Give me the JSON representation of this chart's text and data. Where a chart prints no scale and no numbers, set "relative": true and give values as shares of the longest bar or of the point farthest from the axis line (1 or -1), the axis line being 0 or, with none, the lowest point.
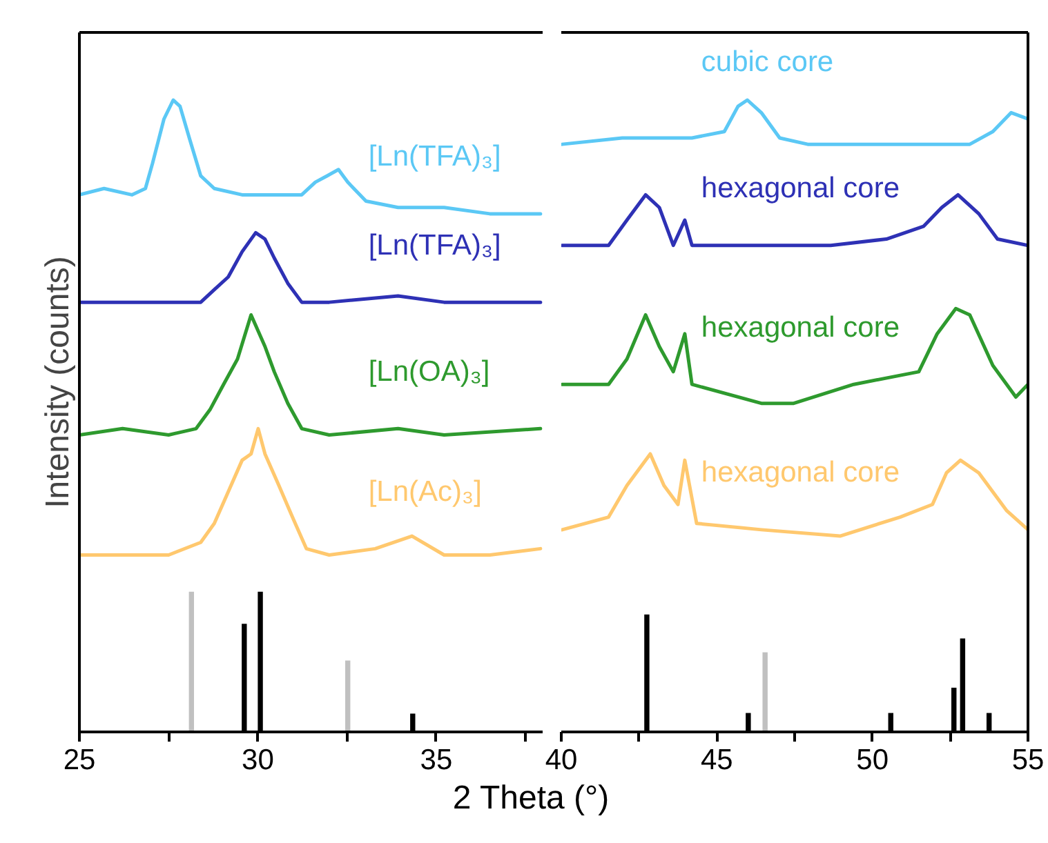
{
  "chart_data": [
    {
      "type": "line",
      "relative": true,
      "tick_labels": "x",
      "ylabel": "Intensity (counts)",
      "xlabel": "2 Theta (°)",
      "xlim": [
        25,
        38
      ],
      "xticks": [
        25,
        {
          "value": 27.5,
          "label": null
        },
        30,
        {
          "value": 32.5,
          "label": null
        },
        35,
        {
          "value": 37.5,
          "label": null
        }
      ],
      "series": [
        {
          "name": "[Ln(TFA)₃]",
          "color": "#5bc8f5",
          "x": [
            25.0,
            25.69,
            26.47,
            26.85,
            27.05,
            27.37,
            27.63,
            27.82,
            28.08,
            28.4,
            28.78,
            29.56,
            30.33,
            31.23,
            31.61,
            31.94,
            32.26,
            32.52,
            33.03,
            33.93,
            35.22,
            36.5,
            37.92
          ],
          "values": [
            0.85,
            0.86,
            0.85,
            0.86,
            0.9,
            0.97,
            1.0,
            0.99,
            0.94,
            0.88,
            0.86,
            0.85,
            0.85,
            0.85,
            0.87,
            0.88,
            0.89,
            0.87,
            0.84,
            0.83,
            0.83,
            0.82,
            0.82
          ]
        },
        {
          "name": "[Ln(TFA)₃]",
          "color": "#2e31b5",
          "x": [
            25.0,
            26.21,
            27.5,
            28.4,
            28.78,
            29.17,
            29.56,
            29.94,
            30.2,
            30.46,
            30.84,
            31.23,
            32.0,
            33.93,
            35.22,
            37.92
          ],
          "values": [
            0.68,
            0.68,
            0.68,
            0.68,
            0.7,
            0.72,
            0.76,
            0.79,
            0.78,
            0.75,
            0.71,
            0.68,
            0.68,
            0.69,
            0.68,
            0.68
          ]
        },
        {
          "name": "[Ln(OA)₃]",
          "color": "#2e9a2e",
          "x": [
            25.0,
            26.21,
            27.5,
            28.27,
            28.66,
            29.04,
            29.43,
            29.81,
            30.2,
            30.46,
            30.84,
            31.23,
            32.0,
            33.93,
            35.22,
            37.92
          ],
          "values": [
            0.47,
            0.48,
            0.47,
            0.48,
            0.51,
            0.55,
            0.59,
            0.66,
            0.61,
            0.57,
            0.52,
            0.48,
            0.47,
            0.48,
            0.47,
            0.48
          ]
        },
        {
          "name": "[Ln(Ac)₃]",
          "color": "#ffc86e",
          "x": [
            25.0,
            26.21,
            27.5,
            28.4,
            28.78,
            29.17,
            29.56,
            29.81,
            30.01,
            30.2,
            30.59,
            30.97,
            31.36,
            32.0,
            33.29,
            34.32,
            35.22,
            36.5,
            37.92
          ],
          "values": [
            0.28,
            0.28,
            0.28,
            0.3,
            0.33,
            0.38,
            0.43,
            0.44,
            0.48,
            0.44,
            0.39,
            0.34,
            0.29,
            0.28,
            0.29,
            0.31,
            0.28,
            0.28,
            0.29
          ]
        },
        {
          "type": "bar",
          "color": "#000000",
          "x": [
            29.62,
            30.07,
            34.34
          ],
          "values": [
            0.171,
            0.222,
            0.029
          ]
        },
        {
          "type": "bar",
          "color": "#c0c0c0",
          "x": [
            28.14,
            32.52
          ],
          "values": [
            0.222,
            0.113
          ]
        }
      ]
    },
    {
      "type": "line",
      "relative": true,
      "tick_labels": "x",
      "xlim": [
        40,
        55
      ],
      "xticks": [
        40,
        {
          "value": 42.5,
          "label": null
        },
        45,
        {
          "value": 47.5,
          "label": null
        },
        50,
        {
          "value": 52.5,
          "label": null
        },
        55
      ],
      "series": [
        {
          "name": "cubic core",
          "color": "#5bc8f5",
          "x": [
            40.03,
            41.96,
            44.2,
            45.24,
            45.68,
            45.98,
            46.43,
            47.02,
            47.92,
            50.15,
            53.13,
            53.87,
            54.46,
            55.0
          ],
          "values": [
            0.93,
            0.94,
            0.94,
            0.95,
            0.99,
            1.0,
            0.98,
            0.94,
            0.93,
            0.93,
            0.93,
            0.95,
            0.98,
            0.97
          ]
        },
        {
          "name": "hexagonal core",
          "color": "#2e31b5",
          "x": [
            40.03,
            41.52,
            42.11,
            42.71,
            43.15,
            43.6,
            43.97,
            44.2,
            46.43,
            48.66,
            50.45,
            51.64,
            52.23,
            52.75,
            53.42,
            54.02,
            55.0
          ],
          "values": [
            0.77,
            0.77,
            0.81,
            0.85,
            0.83,
            0.77,
            0.81,
            0.77,
            0.77,
            0.77,
            0.78,
            0.8,
            0.83,
            0.85,
            0.82,
            0.78,
            0.77
          ]
        },
        {
          "name": "hexagonal core",
          "color": "#2e9a2e",
          "x": [
            40.03,
            41.52,
            42.11,
            42.71,
            43.15,
            43.6,
            43.97,
            44.2,
            46.43,
            47.47,
            49.4,
            51.49,
            52.08,
            52.68,
            53.13,
            53.87,
            54.61,
            55.0
          ],
          "values": [
            0.55,
            0.55,
            0.59,
            0.66,
            0.61,
            0.57,
            0.63,
            0.55,
            0.52,
            0.52,
            0.55,
            0.57,
            0.63,
            0.67,
            0.66,
            0.58,
            0.53,
            0.55
          ]
        },
        {
          "name": "hexagonal core",
          "color": "#ffc86e",
          "x": [
            40.03,
            41.52,
            42.11,
            42.86,
            43.3,
            43.75,
            43.97,
            44.35,
            46.43,
            48.96,
            50.89,
            51.93,
            52.38,
            52.83,
            53.42,
            54.32,
            55.0
          ],
          "values": [
            0.32,
            0.34,
            0.39,
            0.44,
            0.39,
            0.36,
            0.43,
            0.33,
            0.32,
            0.31,
            0.34,
            0.36,
            0.41,
            0.43,
            0.41,
            0.35,
            0.32
          ]
        },
        {
          "type": "bar",
          "color": "#000000",
          "x": [
            42.75,
            46.01,
            50.59,
            52.62,
            52.9,
            53.75
          ],
          "values": [
            0.186,
            0.03,
            0.03,
            0.07,
            0.148,
            0.03
          ]
        },
        {
          "type": "bar",
          "color": "#c0c0c0",
          "x": [
            46.55
          ],
          "values": [
            0.126
          ]
        }
      ]
    }
  ]
}
